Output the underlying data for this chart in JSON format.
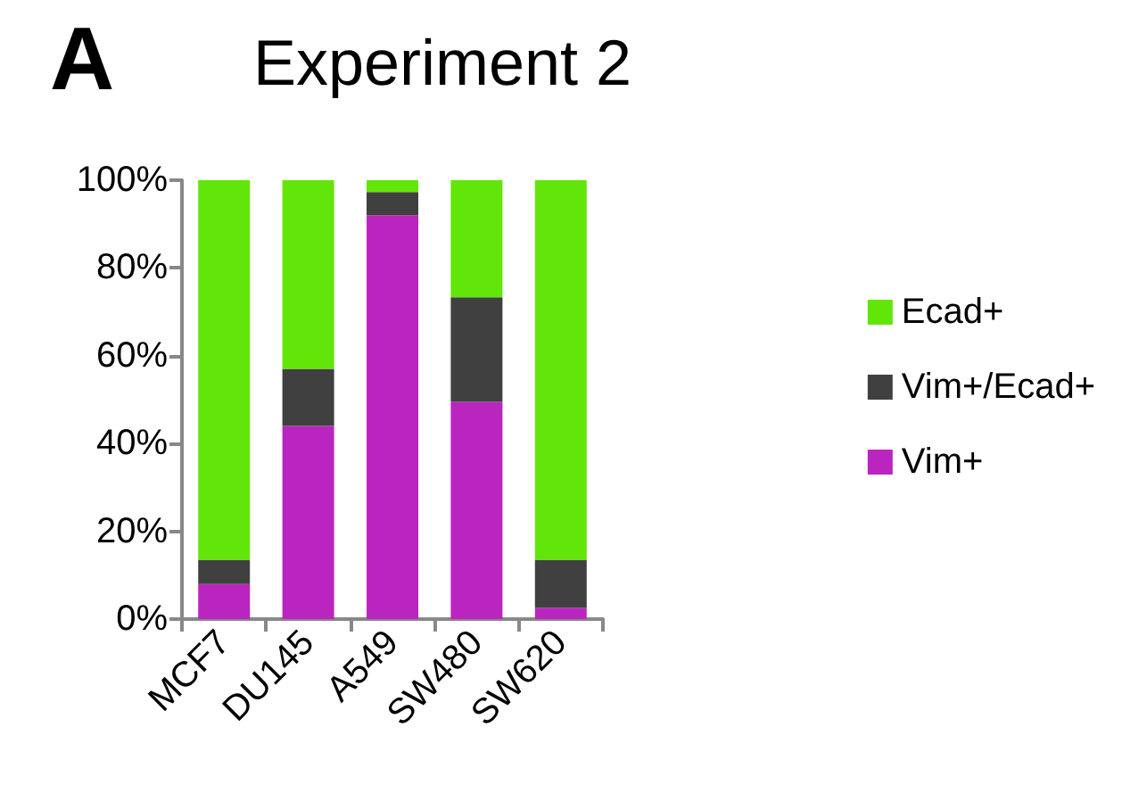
{
  "chart_data": {
    "type": "bar",
    "title": "Experiment 2",
    "annotations": [
      "A"
    ],
    "categories": [
      "MCF7",
      "DU145",
      "A549",
      "SW480",
      "SW620"
    ],
    "series": [
      {
        "name": "Vim+",
        "color": "#bb25bf",
        "values": [
          8,
          44,
          92,
          49.5,
          2.6
        ]
      },
      {
        "name": "Vim+/Ecad+",
        "color": "#404040",
        "values": [
          5.5,
          13,
          5.3,
          23.8,
          10.9
        ]
      },
      {
        "name": "Ecad+",
        "color": "#62e60a",
        "values": [
          86.5,
          43,
          2.7,
          26.7,
          86.5
        ]
      }
    ],
    "stacked": true,
    "ylim": [
      0,
      100
    ],
    "yticks": [
      {
        "value": 0,
        "label": "0%"
      },
      {
        "value": 20,
        "label": "20%"
      },
      {
        "value": 40,
        "label": "40%"
      },
      {
        "value": 60,
        "label": "60%"
      },
      {
        "value": 80,
        "label": "80%"
      },
      {
        "value": 100,
        "label": "100%"
      }
    ],
    "legend": "right"
  }
}
